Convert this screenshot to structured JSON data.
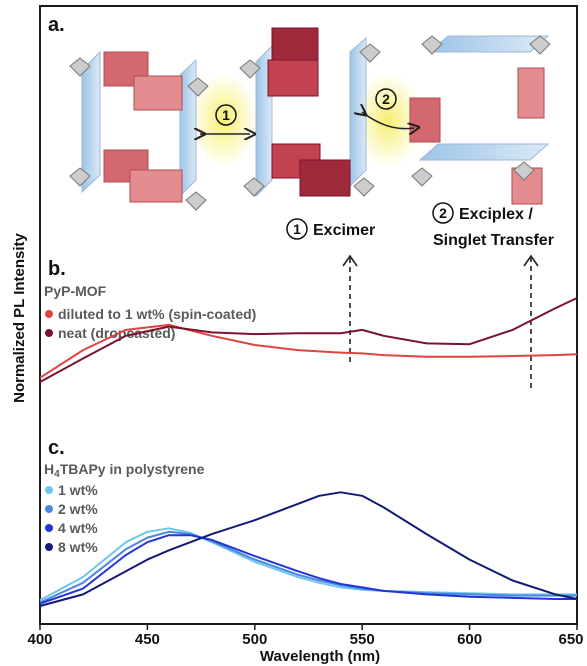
{
  "figure": {
    "ylabel": "Normalized PL Intensity",
    "xlabel": "Wavelength (nm)",
    "x_ticks": [
      "400",
      "450",
      "500",
      "550",
      "600",
      "650"
    ]
  },
  "panel_a": {
    "label": "a.",
    "path_markers": [
      "1",
      "2"
    ],
    "annotation_1_num": "1",
    "annotation_1_text": "Excimer",
    "annotation_2_num": "2",
    "annotation_2_line1": "Exciplex /",
    "annotation_2_line2": "Singlet Transfer"
  },
  "panel_b": {
    "label": "b.",
    "title": "PyP-MOF",
    "legend": [
      {
        "name": "diluted to 1 wt% (spin-coated)",
        "color": "#e0433f"
      },
      {
        "name": "neat (dropcasted)",
        "color": "#7a1230"
      }
    ]
  },
  "panel_c": {
    "label": "c.",
    "title_main": "H",
    "title_sub": "4",
    "title_rest": "TBAPy in polystyrene",
    "legend": [
      {
        "name": "1 wt%",
        "color": "#6ec6ee"
      },
      {
        "name": "2 wt%",
        "color": "#4b86e0"
      },
      {
        "name": "4 wt%",
        "color": "#2236d6"
      },
      {
        "name": "8 wt%",
        "color": "#141a78"
      }
    ]
  },
  "chart_data": [
    {
      "type": "line",
      "panel": "b",
      "xlim": [
        400,
        650
      ],
      "x": [
        400,
        420,
        440,
        460,
        480,
        500,
        520,
        540,
        550,
        560,
        580,
        600,
        620,
        640,
        650
      ],
      "series": [
        {
          "name": "diluted to 1 wt% (spin-coated)",
          "color": "#e0433f",
          "values": [
            0.05,
            0.38,
            0.62,
            0.68,
            0.55,
            0.44,
            0.38,
            0.35,
            0.34,
            0.32,
            0.3,
            0.3,
            0.31,
            0.32,
            0.33
          ]
        },
        {
          "name": "neat (dropcasted)",
          "color": "#7a1230",
          "values": [
            0.0,
            0.28,
            0.55,
            0.66,
            0.59,
            0.57,
            0.58,
            0.58,
            0.62,
            0.55,
            0.46,
            0.45,
            0.62,
            0.88,
            1.0
          ]
        }
      ]
    },
    {
      "type": "line",
      "panel": "c",
      "xlim": [
        400,
        650
      ],
      "x": [
        400,
        420,
        440,
        450,
        460,
        470,
        480,
        500,
        520,
        530,
        540,
        550,
        560,
        580,
        600,
        620,
        640,
        650
      ],
      "series": [
        {
          "name": "1 wt%",
          "color": "#6ec6ee",
          "values": [
            0.05,
            0.25,
            0.55,
            0.64,
            0.67,
            0.63,
            0.55,
            0.38,
            0.25,
            0.2,
            0.16,
            0.14,
            0.13,
            0.12,
            0.11,
            0.1,
            0.1,
            0.1
          ]
        },
        {
          "name": "2 wt%",
          "color": "#4b86e0",
          "values": [
            0.03,
            0.2,
            0.49,
            0.59,
            0.64,
            0.62,
            0.56,
            0.4,
            0.27,
            0.22,
            0.18,
            0.15,
            0.13,
            0.11,
            0.1,
            0.09,
            0.09,
            0.09
          ]
        },
        {
          "name": "4 wt%",
          "color": "#2236d6",
          "values": [
            0.02,
            0.15,
            0.44,
            0.55,
            0.61,
            0.61,
            0.57,
            0.43,
            0.3,
            0.24,
            0.19,
            0.16,
            0.13,
            0.1,
            0.08,
            0.07,
            0.06,
            0.06
          ]
        },
        {
          "name": "8 wt%",
          "color": "#141a78",
          "values": [
            0.0,
            0.1,
            0.3,
            0.4,
            0.48,
            0.55,
            0.62,
            0.74,
            0.88,
            0.95,
            0.98,
            0.95,
            0.85,
            0.62,
            0.4,
            0.22,
            0.1,
            0.06
          ]
        }
      ]
    }
  ]
}
